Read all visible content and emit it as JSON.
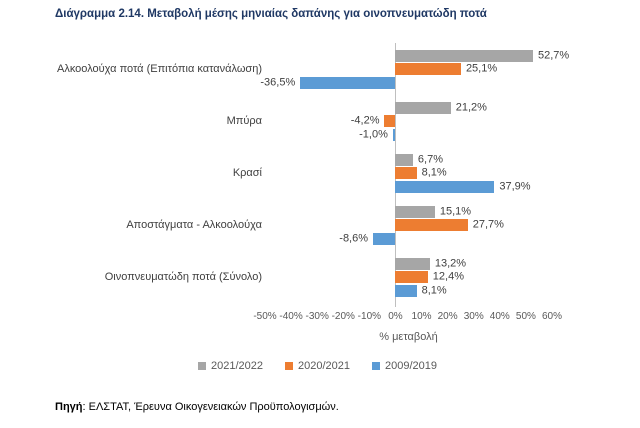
{
  "title": "Διάγραμμα 2.14. Μεταβολή μέσης μηνιαίας δαπάνης για οινοπνευματώδη ποτά",
  "source": {
    "label": "Πηγή",
    "text": ": ΕΛΣΤΑΤ, Έρευνα Οικογενειακών Προϋπολογισμών."
  },
  "chart_data": {
    "type": "bar",
    "orientation": "horizontal",
    "title": "Διάγραμμα 2.14. Μεταβολή μέσης μηνιαίας δαπάνης για οινοπνευματώδη ποτά",
    "xlabel": "% μεταβολή",
    "ylabel": "",
    "xlim": [
      -50,
      60
    ],
    "xticks": [
      "-50%",
      "-40%",
      "-30%",
      "-20%",
      "-10%",
      "0%",
      "10%",
      "20%",
      "30%",
      "40%",
      "50%",
      "60%"
    ],
    "grid": false,
    "legend_position": "bottom",
    "categories": [
      "Αλκοολούχα ποτά (Επιτόπια κατανάλωση)",
      "Μπύρα",
      "Κρασί",
      "Αποστάγματα - Αλκοολούχα",
      "Οινοπνευματώδη ποτά (Σύνολο)"
    ],
    "series": [
      {
        "name": "2021/2022",
        "color": "#A6A6A6",
        "values": [
          52.7,
          21.2,
          6.7,
          15.1,
          13.2
        ],
        "labels": [
          "52,7%",
          "21,2%",
          "6,7%",
          "15,1%",
          "13,2%"
        ]
      },
      {
        "name": "2020/2021",
        "color": "#ED7D31",
        "values": [
          25.1,
          -4.2,
          8.1,
          27.7,
          12.4
        ],
        "labels": [
          "25,1%",
          "-4,2%",
          "8,1%",
          "27,7%",
          "12,4%"
        ]
      },
      {
        "name": "2009/2019",
        "color": "#5B9BD5",
        "values": [
          -36.5,
          -1.0,
          37.9,
          -8.6,
          8.1
        ],
        "labels": [
          "-36,5%",
          "-1,0%",
          "37,9%",
          "-8,6%",
          "8,1%"
        ]
      }
    ],
    "colors": {
      "title": "#1F3864",
      "labels": "#404040",
      "axis": "#595959",
      "zero_line": "#BFBFBF"
    }
  }
}
